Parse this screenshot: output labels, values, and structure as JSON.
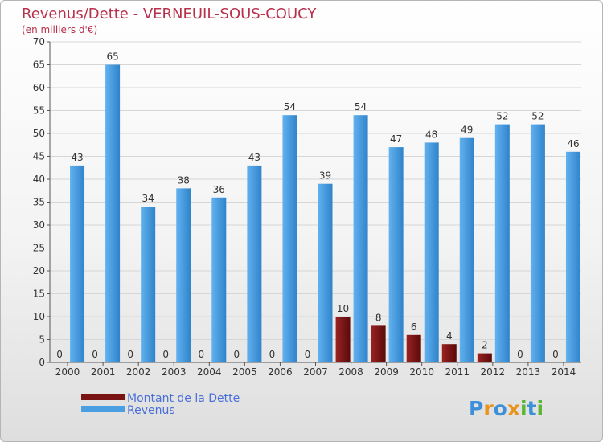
{
  "chart_data": {
    "type": "bar",
    "title": "Revenus/Dette - VERNEUIL-SOUS-COUCY",
    "subtitle": "(en milliers d'€)",
    "categories": [
      "2000",
      "2001",
      "2002",
      "2003",
      "2004",
      "2005",
      "2006",
      "2007",
      "2008",
      "2009",
      "2010",
      "2011",
      "2012",
      "2013",
      "2014"
    ],
    "series": [
      {
        "name": "Montant de la Dette",
        "color": "#7a1414",
        "values": [
          0,
          0,
          0,
          0,
          0,
          0,
          0,
          0,
          10,
          8,
          6,
          4,
          2,
          0,
          0
        ]
      },
      {
        "name": "Revenus",
        "color": "#4a9fe3",
        "values": [
          43,
          65,
          34,
          38,
          36,
          43,
          54,
          39,
          54,
          47,
          48,
          49,
          52,
          52,
          46
        ]
      }
    ],
    "ylim": [
      0,
      70
    ],
    "ytick_step": 5,
    "grid": true,
    "legend": "bottom-left"
  },
  "branding": {
    "logo_text": "Proxiti",
    "logo_letters": [
      "P",
      "r",
      "o",
      "x",
      "i",
      "t",
      "i"
    ],
    "logo_colors": [
      "#3c8fd8",
      "#e8941a",
      "#3c8fd8",
      "#e8941a",
      "#5cb531",
      "#3c8fd8",
      "#5cb531"
    ]
  }
}
